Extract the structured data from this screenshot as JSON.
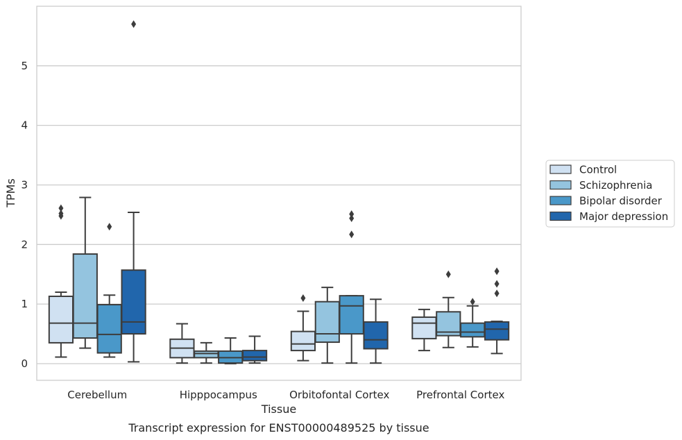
{
  "chart_data": {
    "type": "box",
    "title": "Transcript expression for ENST00000489525 by tissue",
    "xlabel": "Tissue",
    "ylabel": "TPMs",
    "ylim": [
      -0.28,
      6.0
    ],
    "yticks": [
      0,
      1,
      2,
      3,
      4,
      5
    ],
    "grid": "y",
    "legend_position": "right",
    "categories": [
      "Cerebellum",
      "Hipppocampus",
      "Orbitofontal Cortex",
      "Prefrontal Cortex"
    ],
    "series": [
      {
        "name": "Control",
        "color": "#d0e1f2",
        "boxes": [
          {
            "whislo": 0.11,
            "q1": 0.35,
            "med": 0.68,
            "q3": 1.13,
            "whishi": 1.2,
            "fliers": [
              2.48,
              2.52,
              2.61
            ]
          },
          {
            "whislo": 0.01,
            "q1": 0.1,
            "med": 0.26,
            "q3": 0.41,
            "whishi": 0.67,
            "fliers": []
          },
          {
            "whislo": 0.05,
            "q1": 0.22,
            "med": 0.33,
            "q3": 0.54,
            "whishi": 0.88,
            "fliers": [
              1.1
            ]
          },
          {
            "whislo": 0.22,
            "q1": 0.42,
            "med": 0.68,
            "q3": 0.78,
            "whishi": 0.91,
            "fliers": []
          }
        ]
      },
      {
        "name": "Schizophrenia",
        "color": "#94c4df",
        "boxes": [
          {
            "whislo": 0.26,
            "q1": 0.43,
            "med": 0.68,
            "q3": 1.84,
            "whishi": 2.79,
            "fliers": []
          },
          {
            "whislo": 0.01,
            "q1": 0.1,
            "med": 0.17,
            "q3": 0.21,
            "whishi": 0.35,
            "fliers": []
          },
          {
            "whislo": 0.01,
            "q1": 0.36,
            "med": 0.5,
            "q3": 1.04,
            "whishi": 1.28,
            "fliers": []
          },
          {
            "whislo": 0.27,
            "q1": 0.47,
            "med": 0.53,
            "q3": 0.87,
            "whishi": 1.11,
            "fliers": [
              1.5
            ]
          }
        ]
      },
      {
        "name": "Bipolar disorder",
        "color": "#4a98c9",
        "boxes": [
          {
            "whislo": 0.11,
            "q1": 0.18,
            "med": 0.49,
            "q3": 0.99,
            "whishi": 1.15,
            "fliers": [
              2.3
            ]
          },
          {
            "whislo": 0.0,
            "q1": 0.01,
            "med": 0.1,
            "q3": 0.21,
            "whishi": 0.43,
            "fliers": []
          },
          {
            "whislo": 0.01,
            "q1": 0.5,
            "med": 0.97,
            "q3": 1.14,
            "whishi": 1.14,
            "fliers": [
              2.17,
              2.44,
              2.51
            ]
          },
          {
            "whislo": 0.28,
            "q1": 0.45,
            "med": 0.53,
            "q3": 0.68,
            "whishi": 0.97,
            "fliers": [
              1.04
            ]
          }
        ]
      },
      {
        "name": "Major depression",
        "color": "#2166ac",
        "boxes": [
          {
            "whislo": 0.03,
            "q1": 0.5,
            "med": 0.7,
            "q3": 1.57,
            "whishi": 2.54,
            "fliers": [
              5.7
            ]
          },
          {
            "whislo": 0.01,
            "q1": 0.05,
            "med": 0.11,
            "q3": 0.22,
            "whishi": 0.46,
            "fliers": []
          },
          {
            "whislo": 0.01,
            "q1": 0.25,
            "med": 0.4,
            "q3": 0.7,
            "whishi": 1.08,
            "fliers": []
          },
          {
            "whislo": 0.17,
            "q1": 0.4,
            "med": 0.58,
            "q3": 0.7,
            "whishi": 0.71,
            "fliers": [
              1.18,
              1.34,
              1.55
            ]
          }
        ]
      }
    ]
  }
}
